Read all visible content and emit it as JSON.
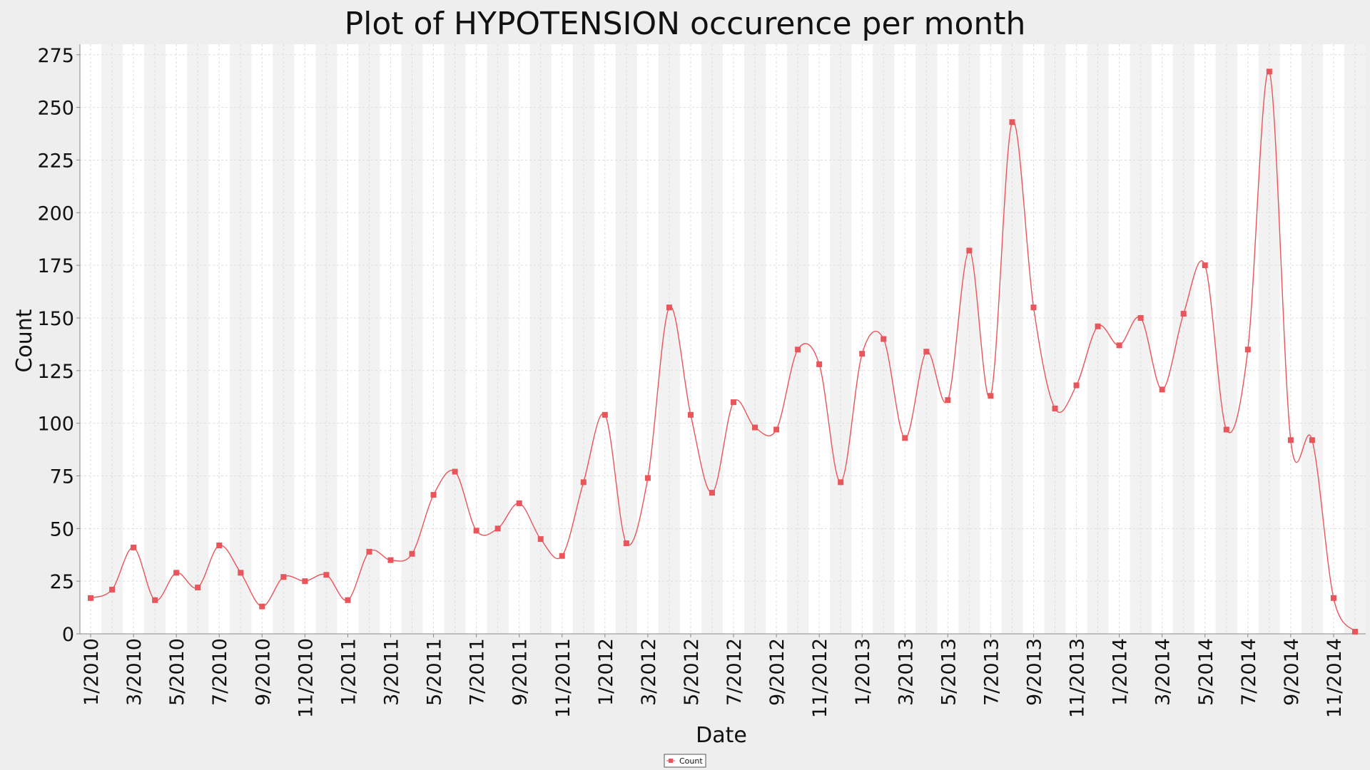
{
  "chart_data": {
    "type": "line",
    "title": "Plot of HYPOTENSION occurence per month",
    "xlabel": "Date",
    "ylabel": "Count",
    "ylim": [
      0,
      280
    ],
    "yticks": [
      0,
      25,
      50,
      75,
      100,
      125,
      150,
      175,
      200,
      225,
      250,
      275
    ],
    "grid": true,
    "legend_position": "bottom-center",
    "x": [
      "1/2010",
      "2/2010",
      "3/2010",
      "4/2010",
      "5/2010",
      "6/2010",
      "7/2010",
      "8/2010",
      "9/2010",
      "10/2010",
      "11/2010",
      "12/2010",
      "1/2011",
      "2/2011",
      "3/2011",
      "4/2011",
      "5/2011",
      "6/2011",
      "7/2011",
      "8/2011",
      "9/2011",
      "10/2011",
      "11/2011",
      "12/2011",
      "1/2012",
      "2/2012",
      "3/2012",
      "4/2012",
      "5/2012",
      "6/2012",
      "7/2012",
      "8/2012",
      "9/2012",
      "10/2012",
      "11/2012",
      "12/2012",
      "1/2013",
      "2/2013",
      "3/2013",
      "4/2013",
      "5/2013",
      "6/2013",
      "7/2013",
      "8/2013",
      "9/2013",
      "10/2013",
      "11/2013",
      "12/2013",
      "1/2014",
      "2/2014",
      "3/2014",
      "4/2014",
      "5/2014",
      "6/2014",
      "7/2014",
      "8/2014",
      "9/2014",
      "10/2014",
      "11/2014",
      "12/2014"
    ],
    "xtick_labels": [
      "1/2010",
      "3/2010",
      "5/2010",
      "7/2010",
      "9/2010",
      "11/2010",
      "1/2011",
      "3/2011",
      "5/2011",
      "7/2011",
      "9/2011",
      "11/2011",
      "1/2012",
      "3/2012",
      "5/2012",
      "7/2012",
      "9/2012",
      "11/2012",
      "1/2013",
      "3/2013",
      "5/2013",
      "7/2013",
      "9/2013",
      "11/2013",
      "1/2014",
      "3/2014",
      "5/2014",
      "7/2014",
      "9/2014",
      "11/2014"
    ],
    "series": [
      {
        "name": "Count",
        "color": "#e8555a",
        "values": [
          17,
          21,
          41,
          16,
          29,
          22,
          42,
          29,
          13,
          27,
          25,
          28,
          16,
          39,
          35,
          38,
          66,
          77,
          49,
          50,
          62,
          45,
          37,
          72,
          104,
          43,
          74,
          155,
          104,
          67,
          110,
          98,
          97,
          135,
          128,
          72,
          133,
          140,
          93,
          134,
          111,
          182,
          113,
          243,
          155,
          107,
          118,
          146,
          137,
          150,
          116,
          152,
          175,
          97,
          135,
          267,
          92,
          92,
          17,
          1
        ]
      }
    ]
  },
  "colors": {
    "background": "#eeeeee",
    "plot_band_light": "#ffffff",
    "plot_band_dark": "#f2f2f2",
    "grid": "#dddddd",
    "series": "#e8555a"
  }
}
